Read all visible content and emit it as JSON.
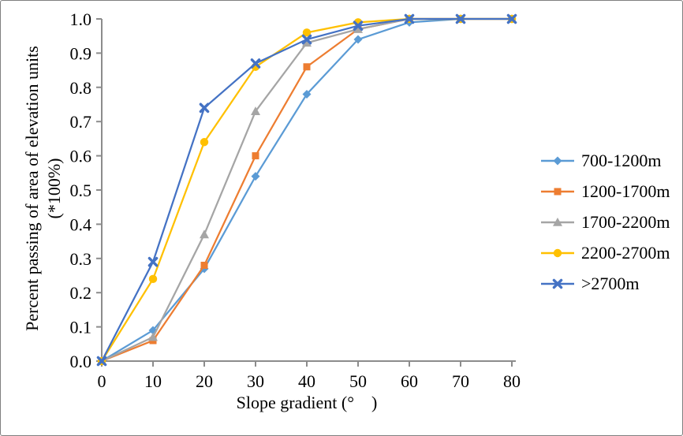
{
  "figure": {
    "background": "#ffffff",
    "border_color": "#7f7f7f"
  },
  "chart_data": {
    "type": "line",
    "title": "",
    "xlabel": "Slope gradient (° )",
    "ylabel_lines": [
      "Percent passing of area of elevation units",
      "(*100%)"
    ],
    "x": [
      0,
      10,
      20,
      30,
      40,
      50,
      60,
      70,
      80
    ],
    "x_tick_labels": [
      "0",
      "10",
      "20",
      "30",
      "40",
      "50",
      "60",
      "70",
      "80"
    ],
    "y_tick_labels": [
      "0.0",
      "0.1",
      "0.2",
      "0.3",
      "0.4",
      "0.5",
      "0.6",
      "0.7",
      "0.8",
      "0.9",
      "1.0"
    ],
    "xlim": [
      0,
      80
    ],
    "ylim": [
      0,
      1
    ],
    "grid": false,
    "legend_position": "right",
    "axis_color": "#8c8c8c",
    "text_color": "#000000",
    "series": [
      {
        "name": "700-1200m",
        "color": "#5B9BD5",
        "marker": "diamond",
        "values": [
          0,
          0.09,
          0.27,
          0.54,
          0.78,
          0.94,
          0.99,
          1.0,
          1.0
        ]
      },
      {
        "name": "1200-1700m",
        "color": "#ED7D31",
        "marker": "square",
        "values": [
          0,
          0.06,
          0.28,
          0.6,
          0.86,
          0.97,
          1.0,
          1.0,
          1.0
        ]
      },
      {
        "name": "1700-2200m",
        "color": "#A5A5A5",
        "marker": "triangle",
        "values": [
          0,
          0.07,
          0.37,
          0.73,
          0.93,
          0.97,
          1.0,
          1.0,
          1.0
        ]
      },
      {
        "name": "2200-2700m",
        "color": "#FFC000",
        "marker": "circle",
        "values": [
          0,
          0.24,
          0.64,
          0.86,
          0.96,
          0.99,
          1.0,
          1.0,
          1.0
        ]
      },
      {
        "name": ">2700m",
        "color": "#4472C4",
        "marker": "x",
        "values": [
          0,
          0.29,
          0.74,
          0.87,
          0.94,
          0.98,
          1.0,
          1.0,
          1.0
        ]
      }
    ]
  }
}
